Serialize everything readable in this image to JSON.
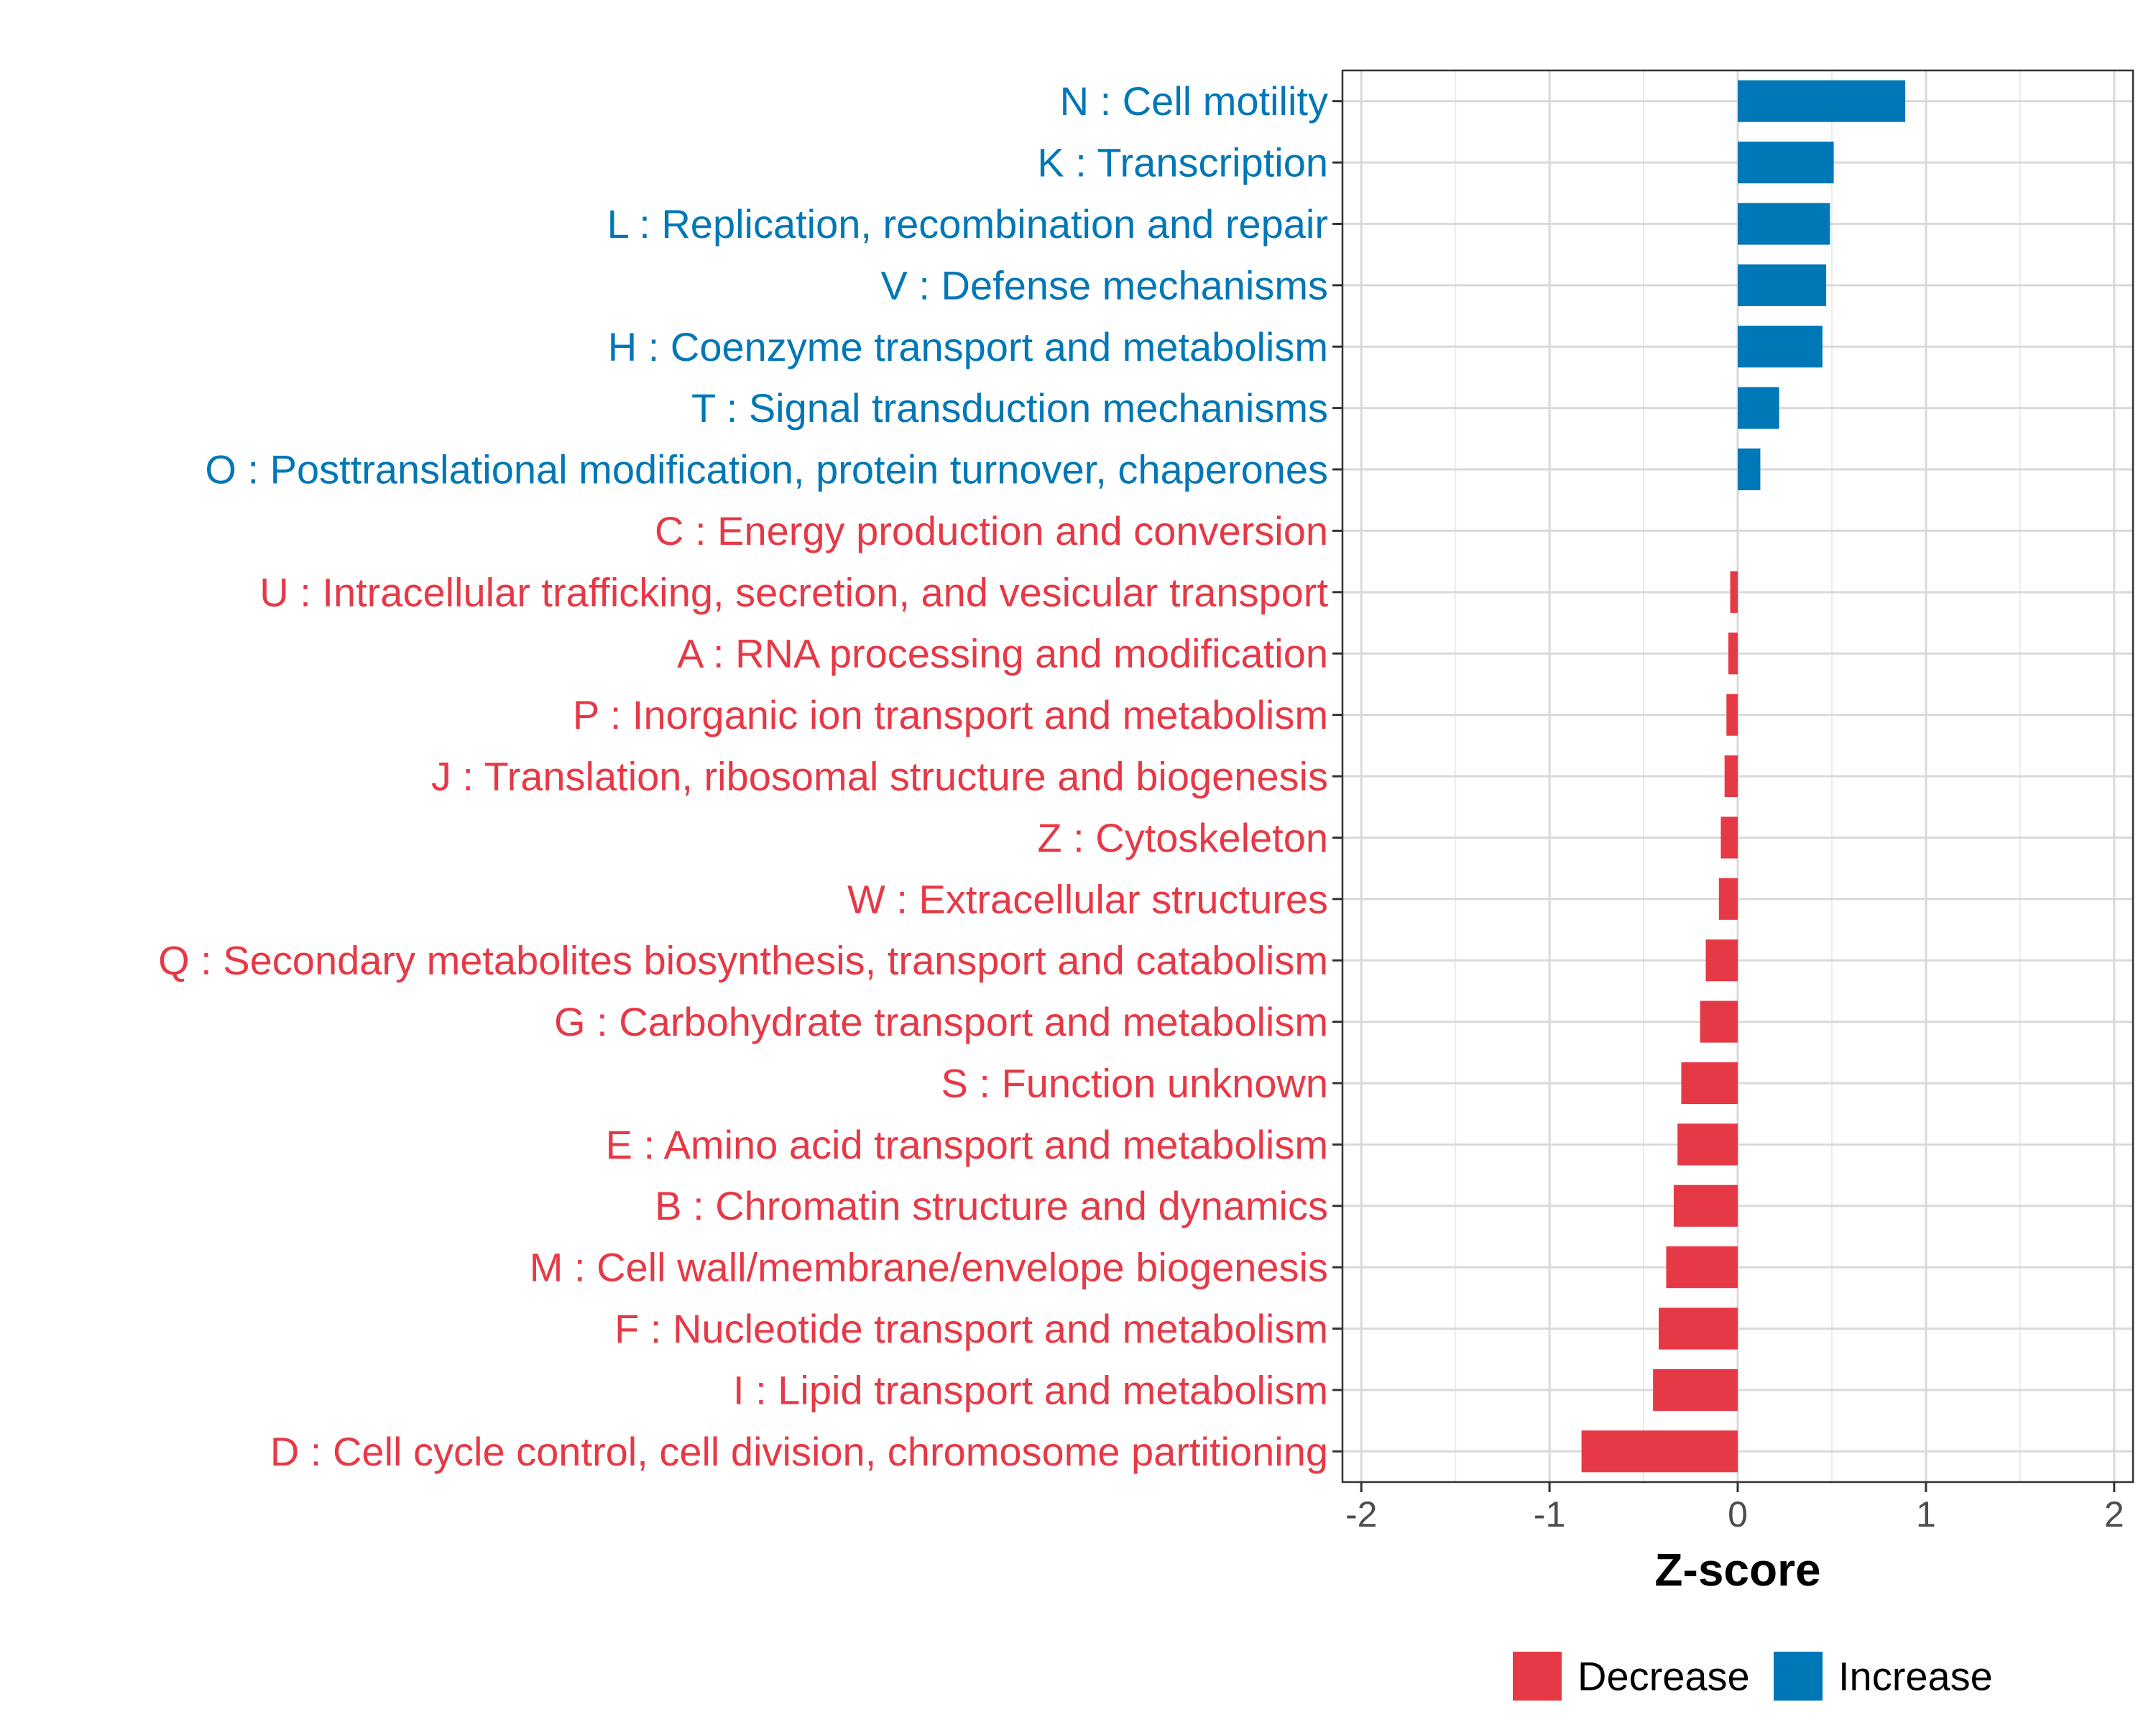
{
  "chart_data": {
    "type": "bar",
    "orientation": "horizontal",
    "title": "",
    "xlabel": "Z-score",
    "ylabel": "",
    "xlim": [
      -2.1,
      2.1
    ],
    "xticks": [
      -2,
      -1,
      0,
      1,
      2
    ],
    "xtick_labels": [
      "-2",
      "-1",
      "0",
      "1",
      "2"
    ],
    "grid": true,
    "legend_position": "bottom",
    "colors": {
      "Decrease": "#E63946",
      "Increase": "#0077B6"
    },
    "legend": [
      {
        "label": "Decrease",
        "color": "#E63946"
      },
      {
        "label": "Increase",
        "color": "#0077B6"
      }
    ],
    "categories": [
      "N : Cell motility",
      "K : Transcription",
      "L : Replication, recombination and repair",
      "V : Defense mechanisms",
      "H : Coenzyme transport and metabolism",
      "T : Signal transduction mechanisms",
      "O : Posttranslational modification, protein turnover, chaperones",
      "C : Energy production and conversion",
      "U : Intracellular trafficking, secretion, and vesicular transport",
      "A : RNA processing and modification",
      "P : Inorganic ion transport and metabolism",
      "J : Translation, ribosomal structure and biogenesis",
      "Z : Cytoskeleton",
      "W : Extracellular structures",
      "Q : Secondary metabolites biosynthesis, transport and catabolism",
      "G : Carbohydrate transport and metabolism",
      "S : Function unknown",
      "E : Amino acid transport and metabolism",
      "B : Chromatin structure and dynamics",
      "M : Cell wall/membrane/envelope biogenesis",
      "F : Nucleotide transport and metabolism",
      "I : Lipid transport and metabolism",
      "D : Cell cycle control, cell division, chromosome partitioning"
    ],
    "values": [
      0.89,
      0.51,
      0.49,
      0.47,
      0.45,
      0.22,
      0.12,
      0.0,
      -0.04,
      -0.05,
      -0.06,
      -0.07,
      -0.09,
      -0.1,
      -0.17,
      -0.2,
      -0.3,
      -0.32,
      -0.34,
      -0.38,
      -0.42,
      -0.45,
      -0.83
    ],
    "groups": [
      "Increase",
      "Increase",
      "Increase",
      "Increase",
      "Increase",
      "Increase",
      "Increase",
      "Decrease",
      "Decrease",
      "Decrease",
      "Decrease",
      "Decrease",
      "Decrease",
      "Decrease",
      "Decrease",
      "Decrease",
      "Decrease",
      "Decrease",
      "Decrease",
      "Decrease",
      "Decrease",
      "Decrease",
      "Decrease"
    ]
  }
}
